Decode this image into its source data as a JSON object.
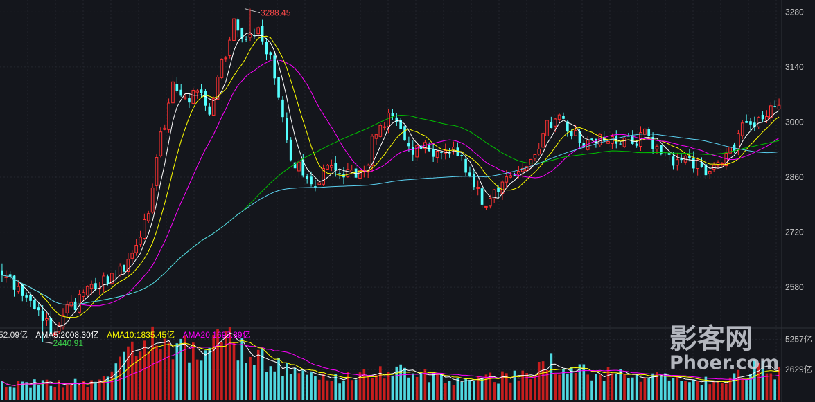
{
  "chart_data": [
    {
      "type": "candlestick",
      "title": "",
      "ylim": [
        2480,
        3300
      ],
      "y_ticks": [
        "3280",
        "3140",
        "3000",
        "2860",
        "2720",
        "2580"
      ],
      "y_tick_values": [
        3280,
        3140,
        3000,
        2860,
        2720,
        2580
      ],
      "grid": true,
      "colors": {
        "up": "#ff3232",
        "down": "#54ffff",
        "ma5": "#ffffff",
        "ma10": "#ffff00",
        "ma20": "#ff00ff",
        "ma60": "#00c000",
        "ma120": "#5bd0f0"
      },
      "close_anchors": [
        [
          0,
          2610
        ],
        [
          5,
          2560
        ],
        [
          10,
          2500
        ],
        [
          13,
          2470
        ],
        [
          17,
          2530
        ],
        [
          21,
          2570
        ],
        [
          26,
          2600
        ],
        [
          30,
          2630
        ],
        [
          33,
          2680
        ],
        [
          36,
          2780
        ],
        [
          39,
          2960
        ],
        [
          42,
          3100
        ],
        [
          45,
          3060
        ],
        [
          48,
          3080
        ],
        [
          51,
          3020
        ],
        [
          54,
          3150
        ],
        [
          57,
          3250
        ],
        [
          60,
          3200
        ],
        [
          63,
          3230
        ],
        [
          66,
          3170
        ],
        [
          68,
          3060
        ],
        [
          71,
          2900
        ],
        [
          74,
          2880
        ],
        [
          77,
          2850
        ],
        [
          80,
          2880
        ],
        [
          83,
          2860
        ],
        [
          86,
          2870
        ],
        [
          89,
          2880
        ],
        [
          92,
          2980
        ],
        [
          95,
          3010
        ],
        [
          98,
          2980
        ],
        [
          101,
          2920
        ],
        [
          104,
          2940
        ],
        [
          107,
          2920
        ],
        [
          110,
          2930
        ],
        [
          113,
          2900
        ],
        [
          116,
          2840
        ],
        [
          119,
          2790
        ],
        [
          122,
          2820
        ],
        [
          125,
          2870
        ],
        [
          128,
          2880
        ],
        [
          131,
          2910
        ],
        [
          134,
          2990
        ],
        [
          137,
          3010
        ],
        [
          140,
          2980
        ],
        [
          143,
          2930
        ],
        [
          146,
          2960
        ],
        [
          149,
          2960
        ],
        [
          152,
          2950
        ],
        [
          155,
          2950
        ],
        [
          158,
          2970
        ],
        [
          161,
          2930
        ],
        [
          164,
          2900
        ],
        [
          167,
          2910
        ],
        [
          170,
          2890
        ],
        [
          173,
          2880
        ],
        [
          176,
          2900
        ],
        [
          179,
          2920
        ],
        [
          182,
          3000
        ],
        [
          185,
          3000
        ],
        [
          188,
          3030
        ],
        [
          191,
          3040
        ]
      ],
      "max_annotation": {
        "label": "3288.45",
        "value": 3288.45,
        "candle_index": 61
      },
      "min_annotation": {
        "label": "2440.91",
        "value": 2440.91,
        "candle_index": 10
      }
    },
    {
      "type": "bar",
      "title": "",
      "ylim": [
        0,
        6000
      ],
      "y_ticks": [
        "5257亿",
        "2629亿"
      ],
      "y_tick_values": [
        5257,
        2629
      ],
      "legend": {
        "vol": "52.09亿",
        "ama5": "AMA5:2008.30亿",
        "ama10": "AMA10:1835.45亿",
        "ama20": "AMA20:1695.89亿"
      },
      "colors": {
        "ama5": "#ffffff",
        "ama10": "#ffff00",
        "ama20": "#ff00ff"
      },
      "volume_anchors": [
        [
          0,
          1500
        ],
        [
          10,
          1400
        ],
        [
          20,
          1500
        ],
        [
          26,
          1700
        ],
        [
          30,
          3200
        ],
        [
          33,
          5000
        ],
        [
          36,
          5600
        ],
        [
          40,
          5000
        ],
        [
          44,
          4600
        ],
        [
          48,
          4300
        ],
        [
          52,
          4800
        ],
        [
          55,
          5200
        ],
        [
          58,
          4500
        ],
        [
          62,
          4000
        ],
        [
          66,
          3300
        ],
        [
          70,
          2800
        ],
        [
          76,
          2200
        ],
        [
          82,
          2000
        ],
        [
          88,
          2300
        ],
        [
          93,
          2600
        ],
        [
          98,
          2400
        ],
        [
          104,
          2100
        ],
        [
          110,
          1800
        ],
        [
          116,
          1700
        ],
        [
          122,
          1900
        ],
        [
          128,
          2300
        ],
        [
          134,
          3300
        ],
        [
          140,
          2600
        ],
        [
          146,
          2200
        ],
        [
          152,
          2200
        ],
        [
          158,
          2100
        ],
        [
          164,
          1800
        ],
        [
          170,
          1700
        ],
        [
          176,
          1800
        ],
        [
          182,
          2100
        ],
        [
          186,
          3300
        ],
        [
          191,
          2300
        ]
      ]
    }
  ],
  "watermark": {
    "line1": "影客网",
    "line2": "Phoer.com"
  }
}
